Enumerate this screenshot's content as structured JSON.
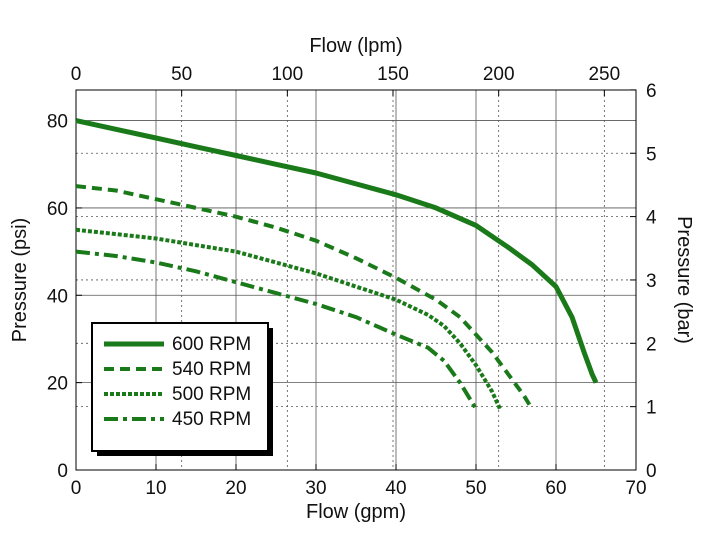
{
  "chart_data": {
    "type": "line",
    "title": "",
    "xlabel_bottom": "Flow (gpm)",
    "xlabel_top": "Flow (lpm)",
    "ylabel_left": "Pressure (psi)",
    "ylabel_right": "Pressure (bar)",
    "xlim": [
      0,
      70
    ],
    "ylim": [
      0,
      87
    ],
    "x_ticks_bottom": [
      0,
      10,
      20,
      30,
      40,
      50,
      60,
      70
    ],
    "x_ticks_top": [
      0,
      50,
      100,
      150,
      200,
      250
    ],
    "y_ticks_left": [
      0,
      20,
      40,
      60,
      80
    ],
    "y_ticks_right": [
      0,
      1,
      2,
      3,
      4,
      5,
      6
    ],
    "grid": true,
    "legend_position": "bottom-left",
    "line_color": "#1a7a1a",
    "series": [
      {
        "name": "600 RPM",
        "style": "solid",
        "x": [
          0,
          5,
          10,
          15,
          20,
          25,
          30,
          35,
          40,
          45,
          50,
          54,
          57,
          60,
          62,
          63.5,
          64.5,
          65
        ],
        "y": [
          80,
          78,
          76,
          74,
          72,
          70,
          68,
          65.5,
          63,
          60,
          56,
          51,
          47,
          42,
          35,
          27,
          22,
          20
        ]
      },
      {
        "name": "540 RPM",
        "style": "dashed",
        "x": [
          0,
          5,
          10,
          15,
          20,
          25,
          30,
          35,
          40,
          45,
          48,
          50,
          52,
          54,
          56,
          57
        ],
        "y": [
          65,
          64,
          62,
          60,
          58,
          55.5,
          52.5,
          48.5,
          44,
          39,
          35,
          31,
          27,
          22,
          17,
          14
        ]
      },
      {
        "name": "500 RPM",
        "style": "dotted",
        "x": [
          0,
          5,
          10,
          15,
          20,
          25,
          30,
          35,
          40,
          44,
          46,
          48,
          50,
          52,
          53
        ],
        "y": [
          55,
          54,
          53,
          51.5,
          50,
          47.5,
          45,
          42,
          39,
          35.5,
          33,
          29,
          24,
          18,
          14
        ]
      },
      {
        "name": "450 RPM",
        "style": "dashdot",
        "x": [
          0,
          5,
          10,
          15,
          20,
          25,
          30,
          35,
          40,
          44,
          46,
          48,
          50
        ],
        "y": [
          50,
          49,
          47.5,
          45.5,
          43,
          40.5,
          38,
          35,
          31,
          28,
          25,
          20,
          14
        ]
      }
    ]
  }
}
